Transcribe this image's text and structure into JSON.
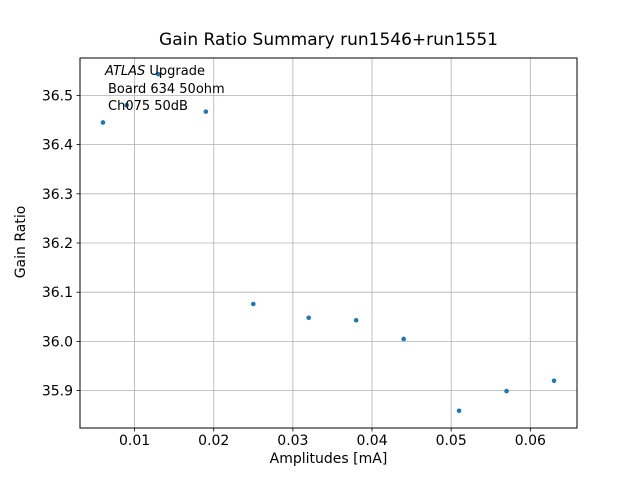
{
  "chart": {
    "title": "Gain Ratio Summary run1546+run1551",
    "xlabel": "Amplitudes [mA]",
    "ylabel": "Gain Ratio",
    "annotation": {
      "line1_italic": "ATLAS",
      "line1_rest": " Upgrade",
      "line2": "Board 634 50ohm",
      "line3": "Ch075 50dB"
    }
  },
  "chart_data": {
    "type": "scatter",
    "title": "Gain Ratio Summary run1546+run1551",
    "xlabel": "Amplitudes [mA]",
    "ylabel": "Gain Ratio",
    "x": [
      0.006,
      0.009,
      0.013,
      0.019,
      0.025,
      0.032,
      0.038,
      0.044,
      0.051,
      0.057,
      0.063
    ],
    "y": [
      36.445,
      36.48,
      36.543,
      36.467,
      36.076,
      36.048,
      36.043,
      36.005,
      35.859,
      35.899,
      35.92
    ],
    "xlim": [
      0.0031,
      0.0659
    ],
    "ylim": [
      35.824,
      36.576
    ],
    "xticks": [
      0.01,
      0.02,
      0.03,
      0.04,
      0.05,
      0.06
    ],
    "xtick_labels": [
      "0.01",
      "0.02",
      "0.03",
      "0.04",
      "0.05",
      "0.06"
    ],
    "yticks": [
      35.9,
      36.0,
      36.1,
      36.2,
      36.3,
      36.4,
      36.5
    ],
    "ytick_labels": [
      "35.9",
      "36.0",
      "36.1",
      "36.2",
      "36.3",
      "36.4",
      "36.5"
    ],
    "grid": true,
    "legend": "none",
    "annotation_lines": [
      "ATLAS Upgrade",
      "Board 634 50ohm",
      "Ch075 50dB"
    ],
    "marker_color": "#1f77b4",
    "grid_color": "#b0b0b0",
    "spine_color": "#000000"
  }
}
